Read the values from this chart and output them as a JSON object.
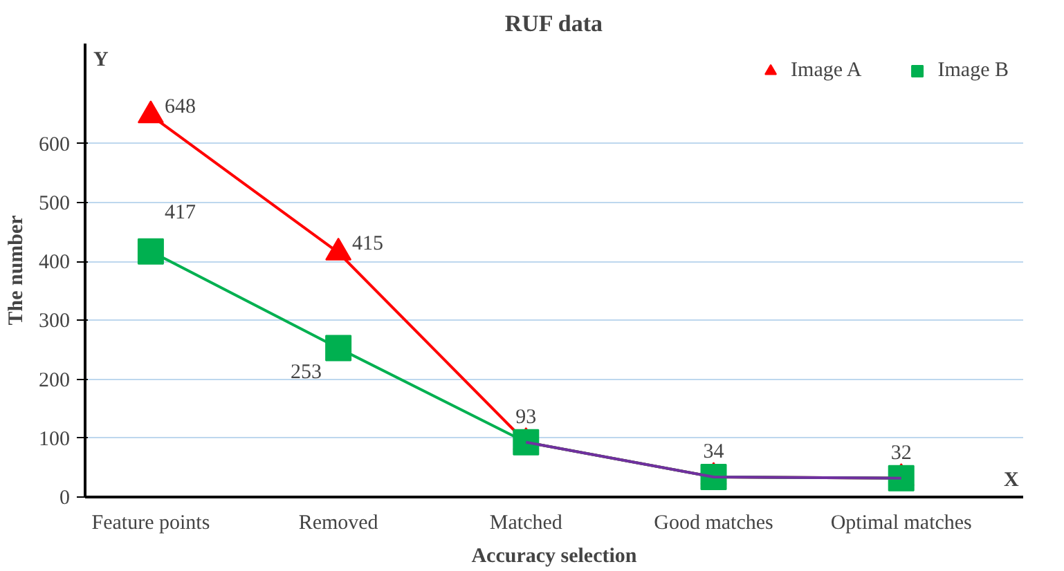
{
  "chart_data": {
    "type": "line",
    "title": "RUF data",
    "xlabel": "Accuracy selection",
    "ylabel": "The number",
    "categories": [
      "Feature points",
      "Removed",
      "Matched",
      "Good matches",
      "Optimal matches"
    ],
    "series": [
      {
        "name": "Image A",
        "color": "#ff0000",
        "marker": "triangle",
        "values": [
          648,
          415,
          93,
          34,
          32
        ],
        "value_labels": [
          "648",
          "415",
          "93",
          "34",
          "32"
        ]
      },
      {
        "name": "Image B",
        "color": "#00b050",
        "marker": "square",
        "values": [
          417,
          253,
          93,
          34,
          32
        ],
        "value_labels": [
          "417",
          "253",
          null,
          null,
          null
        ]
      },
      {
        "color": "#7030a0",
        "marker": "none",
        "values": [
          null,
          null,
          93,
          34,
          32
        ]
      }
    ],
    "ylim": [
      0,
      770
    ],
    "yticks": [
      0,
      100,
      200,
      300,
      400,
      500,
      600
    ],
    "grid": "y",
    "legend": "top right",
    "annotations": [
      "Y",
      "X"
    ]
  }
}
